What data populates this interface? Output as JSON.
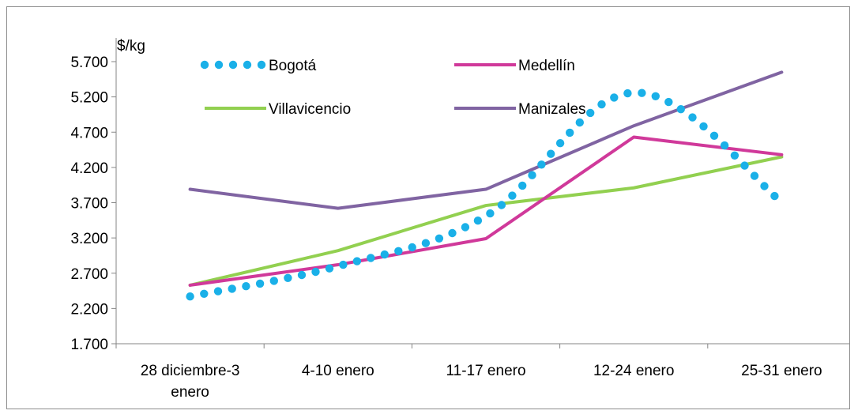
{
  "chart_data": {
    "type": "line",
    "title": "",
    "xlabel": "",
    "ylabel": "$/kg",
    "ylim": [
      1700,
      5700
    ],
    "yticks": [
      1700,
      2200,
      2700,
      3200,
      3700,
      4200,
      4700,
      5200,
      5700
    ],
    "ytick_labels": [
      "1.700",
      "2.200",
      "2.700",
      "3.200",
      "3.700",
      "4.200",
      "4.700",
      "5.200",
      "5.700"
    ],
    "categories": [
      [
        "28 diciembre-3",
        "enero"
      ],
      [
        "4-10 enero"
      ],
      [
        "11-17 enero"
      ],
      [
        "12-24 enero"
      ],
      [
        "25-31 enero"
      ]
    ],
    "grid": false,
    "legend_position": "top",
    "series": [
      {
        "name": "Bogotá",
        "style": "dotted",
        "color": "#1ab0e8",
        "values": [
          2370,
          2800,
          3510,
          5260,
          3710
        ]
      },
      {
        "name": "Medellín",
        "style": "solid",
        "color": "#d0399a",
        "values": [
          2530,
          2820,
          3190,
          4630,
          4380
        ]
      },
      {
        "name": "Villavicencio",
        "style": "solid",
        "color": "#92d050",
        "values": [
          2530,
          3020,
          3660,
          3910,
          4350
        ]
      },
      {
        "name": "Manizales",
        "style": "solid",
        "color": "#8064a2",
        "values": [
          3890,
          3620,
          3890,
          4790,
          5550
        ]
      }
    ]
  }
}
